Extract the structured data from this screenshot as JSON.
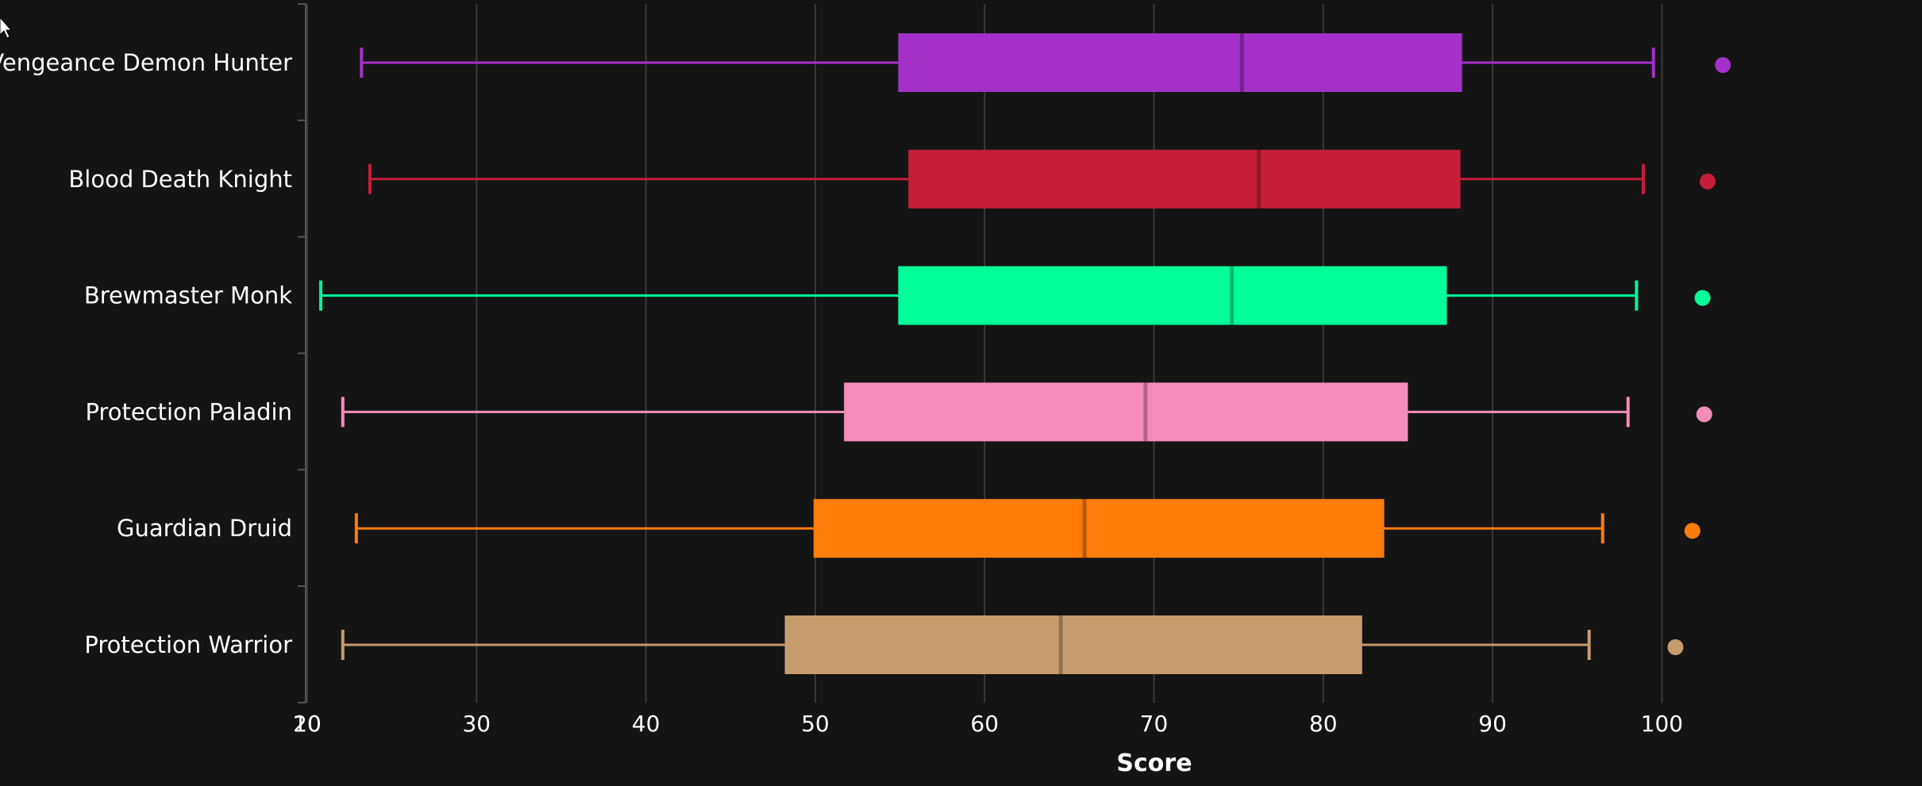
{
  "chart_data": {
    "type": "boxplot",
    "orientation": "horizontal",
    "xlabel": "Score",
    "xlim": [
      10,
      100
    ],
    "xticks": [
      10,
      20,
      30,
      40,
      50,
      60,
      70,
      80,
      90,
      100
    ],
    "grid": true,
    "colors": {
      "background": "#141414",
      "grid": "#3a3a3a",
      "axis": "#555555",
      "text": "#ffffff"
    },
    "categories": [
      "Vengeance Demon Hunter",
      "Blood Death Knight",
      "Brewmaster Monk",
      "Protection Paladin",
      "Guardian Druid",
      "Protection Warrior"
    ],
    "series": [
      {
        "category": "Vengeance Demon Hunter",
        "color": "#a330c9",
        "min": 23.2,
        "q1": 54.9,
        "median": 75.2,
        "q3": 88.2,
        "max": 99.5,
        "outlier": 103.6
      },
      {
        "category": "Blood Death Knight",
        "color": "#c41e3a",
        "min": 23.7,
        "q1": 55.5,
        "median": 76.2,
        "q3": 88.1,
        "max": 98.9,
        "outlier": 102.7
      },
      {
        "category": "Brewmaster Monk",
        "color": "#00ff98",
        "min": 20.8,
        "q1": 54.9,
        "median": 74.6,
        "q3": 87.3,
        "max": 98.5,
        "outlier": 102.4
      },
      {
        "category": "Protection Paladin",
        "color": "#f48cba",
        "min": 22.1,
        "q1": 51.7,
        "median": 69.5,
        "q3": 85.0,
        "max": 98.0,
        "outlier": 102.5
      },
      {
        "category": "Guardian Druid",
        "color": "#ff7c0a",
        "min": 22.9,
        "q1": 49.9,
        "median": 65.9,
        "q3": 83.6,
        "max": 96.5,
        "outlier": 101.8
      },
      {
        "category": "Protection Warrior",
        "color": "#c69b6d",
        "min": 22.1,
        "q1": 48.2,
        "median": 64.5,
        "q3": 82.3,
        "max": 95.7,
        "outlier": 100.8
      }
    ]
  },
  "icons": {
    "cursor": "mouse-pointer-icon"
  }
}
